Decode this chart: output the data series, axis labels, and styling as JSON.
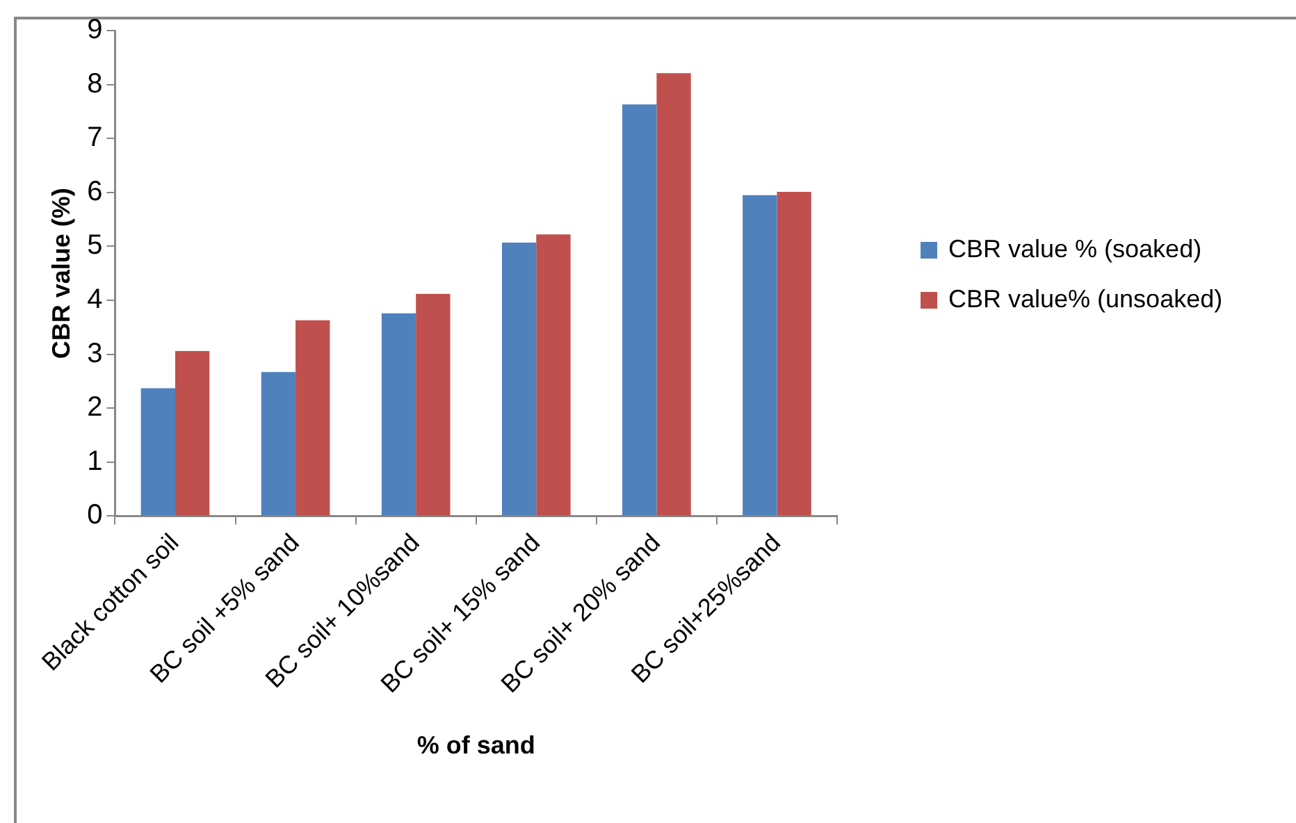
{
  "chart_data": {
    "type": "bar",
    "xlabel": "% of sand",
    "ylabel": "CBR value (%)",
    "categories": [
      "Black cotton soil",
      "BC soil +5% sand",
      "BC soil+ 10%sand",
      "BC soil+ 15% sand",
      "BC soil+ 20% sand",
      "BC soil+25%sand"
    ],
    "series": [
      {
        "name": "CBR value % (soaked)",
        "color": "#4f81bd",
        "values": [
          2.37,
          2.67,
          3.76,
          5.07,
          7.63,
          5.95
        ]
      },
      {
        "name": "CBR value% (unsoaked)",
        "color": "#c0504d",
        "values": [
          3.06,
          3.63,
          4.12,
          5.22,
          8.21,
          6.01
        ]
      }
    ],
    "ylim": [
      0,
      9
    ],
    "yticks": [
      0,
      1,
      2,
      3,
      4,
      5,
      6,
      7,
      8,
      9
    ],
    "grid": false,
    "legend": "right"
  }
}
